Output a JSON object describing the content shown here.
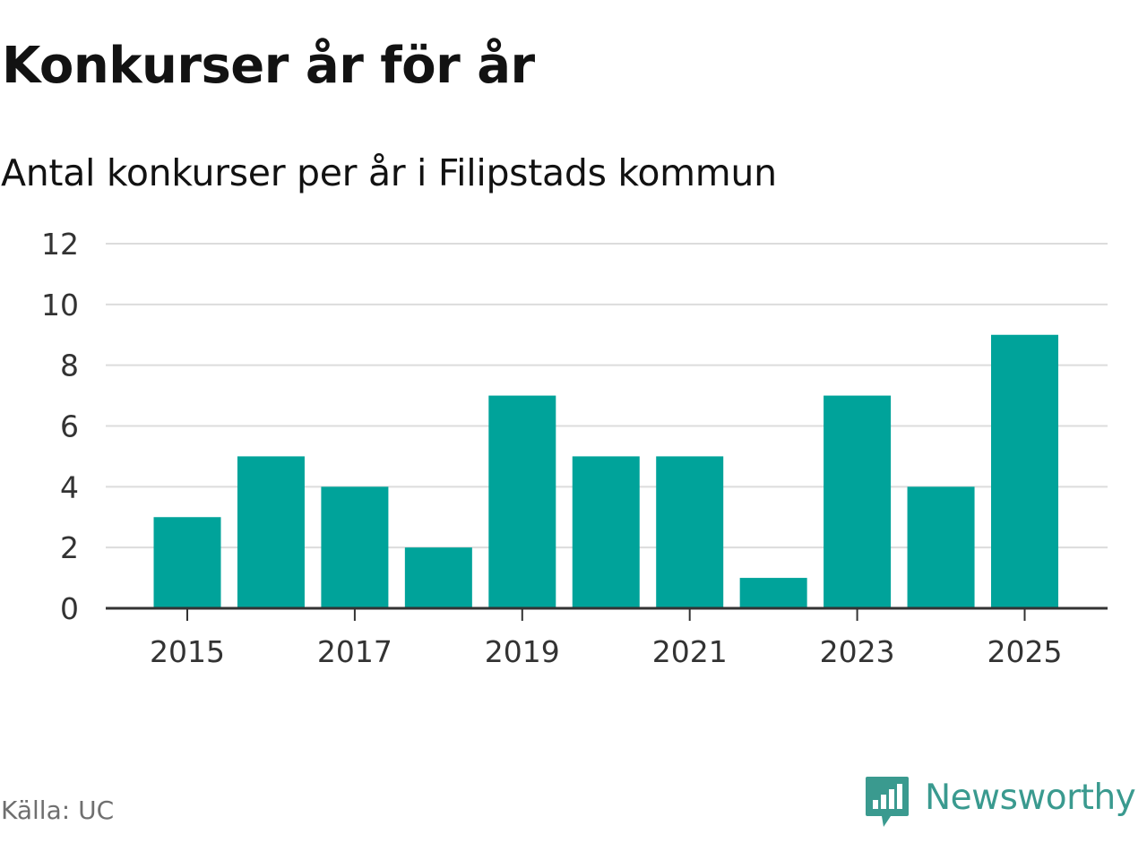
{
  "header": {
    "title": "Konkurser år för år",
    "subtitle": "Antal konkurser per år i Filipstads kommun"
  },
  "footer": {
    "source": "Källa: UC",
    "brand": "Newsworthy"
  },
  "colors": {
    "bar": "#00a39a",
    "grid": "#dcdcdc",
    "axis": "#333333",
    "text": "#333333",
    "brand": "#3a9a8f"
  },
  "chart_data": {
    "type": "bar",
    "title": "Konkurser år för år",
    "subtitle": "Antal konkurser per år i Filipstads kommun",
    "xlabel": "",
    "ylabel": "",
    "categories": [
      2015,
      2016,
      2017,
      2018,
      2019,
      2020,
      2021,
      2022,
      2023,
      2024,
      2025
    ],
    "values": [
      3,
      5,
      4,
      2,
      7,
      5,
      5,
      1,
      7,
      4,
      9
    ],
    "x_tick_labels": [
      "2015",
      "2017",
      "2019",
      "2021",
      "2023",
      "2025"
    ],
    "y_ticks": [
      0,
      2,
      4,
      6,
      8,
      10,
      12
    ],
    "ylim": [
      0,
      12
    ],
    "grid": true,
    "legend": "none"
  }
}
